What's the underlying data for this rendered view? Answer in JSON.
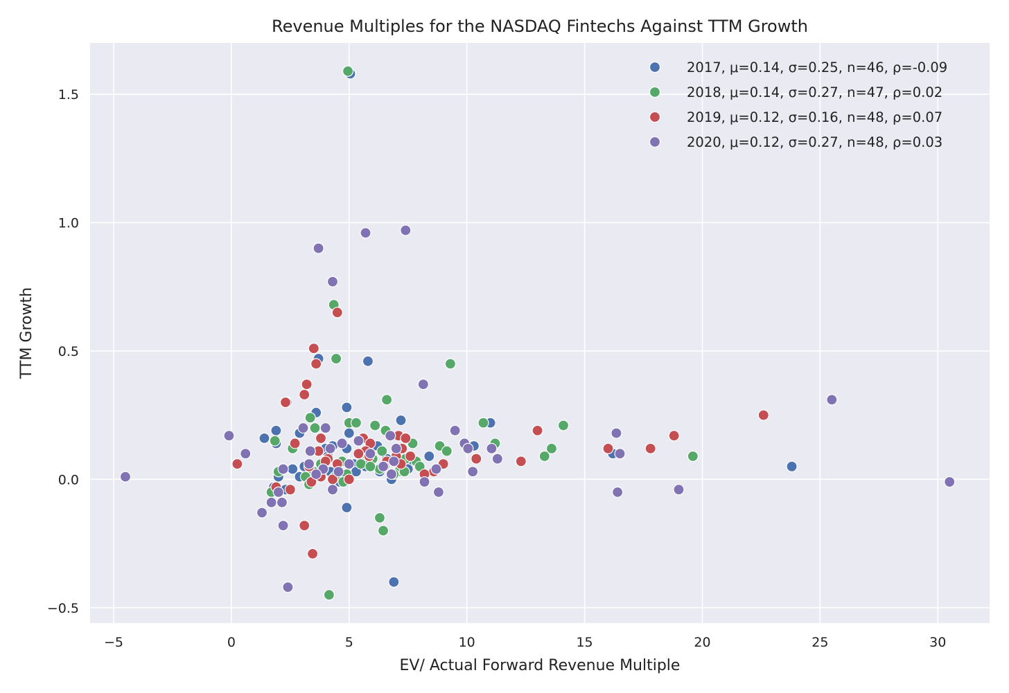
{
  "chart_data": {
    "type": "scatter",
    "title": "Revenue Multiples for the NASDAQ Fintechs Against TTM Growth",
    "xlabel": "EV/ Actual Forward Revenue Multiple",
    "ylabel": "TTM Growth",
    "xlim": [
      -6,
      32.2
    ],
    "ylim": [
      -0.56,
      1.7
    ],
    "xticks": [
      -5,
      0,
      5,
      10,
      15,
      20,
      25,
      30
    ],
    "xtick_labels": [
      "−5",
      "0",
      "5",
      "10",
      "15",
      "20",
      "25",
      "30"
    ],
    "yticks": [
      -0.5,
      0.0,
      0.5,
      1.0,
      1.5
    ],
    "ytick_labels": [
      "−0.5",
      "0.0",
      "0.5",
      "1.0",
      "1.5"
    ],
    "grid": true,
    "legend_position": "top-right",
    "series": [
      {
        "name": "2017",
        "label": "2017, μ=0.14, σ=0.25, n=46, ρ=-0.09",
        "color": "#4c72b0",
        "points": [
          [
            5.05,
            1.58
          ],
          [
            3.7,
            0.47
          ],
          [
            5.8,
            0.46
          ],
          [
            2.35,
            0.3
          ],
          [
            4.9,
            0.28
          ],
          [
            3.6,
            0.26
          ],
          [
            7.2,
            0.23
          ],
          [
            11.0,
            0.22
          ],
          [
            1.9,
            0.19
          ],
          [
            5.0,
            0.18
          ],
          [
            2.9,
            0.18
          ],
          [
            1.4,
            0.16
          ],
          [
            1.9,
            0.14
          ],
          [
            4.3,
            0.13
          ],
          [
            10.3,
            0.13
          ],
          [
            6.2,
            0.13
          ],
          [
            4.0,
            0.12
          ],
          [
            4.9,
            0.12
          ],
          [
            3.7,
            0.11
          ],
          [
            5.4,
            0.1
          ],
          [
            16.2,
            0.1
          ],
          [
            4.1,
            0.09
          ],
          [
            8.4,
            0.09
          ],
          [
            6.6,
            0.08
          ],
          [
            7.7,
            0.07
          ],
          [
            5.2,
            0.06
          ],
          [
            3.1,
            0.05
          ],
          [
            5.7,
            0.05
          ],
          [
            23.8,
            0.05
          ],
          [
            2.6,
            0.04
          ],
          [
            7.5,
            0.04
          ],
          [
            4.2,
            0.03
          ],
          [
            6.3,
            0.03
          ],
          [
            5.3,
            0.03
          ],
          [
            2.9,
            0.01
          ],
          [
            2.0,
            0.01
          ],
          [
            4.8,
            0.0
          ],
          [
            6.8,
            0.0
          ],
          [
            3.3,
            -0.01
          ],
          [
            4.6,
            -0.01
          ],
          [
            1.8,
            -0.03
          ],
          [
            2.3,
            -0.04
          ],
          [
            3.8,
            0.02
          ],
          [
            4.9,
            -0.11
          ],
          [
            6.9,
            -0.4
          ],
          [
            5.6,
            0.07
          ]
        ]
      },
      {
        "name": "2018",
        "label": "2018, μ=0.14, σ=0.27, n=47, ρ=0.02",
        "color": "#55a868",
        "points": [
          [
            4.95,
            1.59
          ],
          [
            4.35,
            0.68
          ],
          [
            4.45,
            0.47
          ],
          [
            9.3,
            0.45
          ],
          [
            6.6,
            0.31
          ],
          [
            3.35,
            0.24
          ],
          [
            5.0,
            0.22
          ],
          [
            5.3,
            0.22
          ],
          [
            10.7,
            0.22
          ],
          [
            6.1,
            0.21
          ],
          [
            14.1,
            0.21
          ],
          [
            3.55,
            0.2
          ],
          [
            6.55,
            0.19
          ],
          [
            7.7,
            0.14
          ],
          [
            11.2,
            0.14
          ],
          [
            1.85,
            0.15
          ],
          [
            8.85,
            0.13
          ],
          [
            2.6,
            0.12
          ],
          [
            13.6,
            0.12
          ],
          [
            9.15,
            0.11
          ],
          [
            6.4,
            0.11
          ],
          [
            5.7,
            0.1
          ],
          [
            13.3,
            0.09
          ],
          [
            19.6,
            0.09
          ],
          [
            7.4,
            0.08
          ],
          [
            6.0,
            0.08
          ],
          [
            7.85,
            0.07
          ],
          [
            4.7,
            0.07
          ],
          [
            3.8,
            0.06
          ],
          [
            5.5,
            0.06
          ],
          [
            8.0,
            0.05
          ],
          [
            6.3,
            0.04
          ],
          [
            2.0,
            0.03
          ],
          [
            7.1,
            0.03
          ],
          [
            3.5,
            0.03
          ],
          [
            4.9,
            0.02
          ],
          [
            6.9,
            0.02
          ],
          [
            7.35,
            0.03
          ],
          [
            3.15,
            0.01
          ],
          [
            4.4,
            0.01
          ],
          [
            3.3,
            -0.02
          ],
          [
            4.75,
            -0.01
          ],
          [
            1.7,
            -0.05
          ],
          [
            6.3,
            -0.15
          ],
          [
            6.45,
            -0.2
          ],
          [
            4.15,
            -0.45
          ],
          [
            5.9,
            0.05
          ]
        ]
      },
      {
        "name": "2019",
        "label": "2019, μ=0.12, σ=0.16, n=48, ρ=0.07",
        "color": "#c44e52",
        "points": [
          [
            4.5,
            0.65
          ],
          [
            3.5,
            0.51
          ],
          [
            3.6,
            0.45
          ],
          [
            3.2,
            0.37
          ],
          [
            3.1,
            0.33
          ],
          [
            2.3,
            0.3
          ],
          [
            22.6,
            0.25
          ],
          [
            13.0,
            0.19
          ],
          [
            18.8,
            0.17
          ],
          [
            7.1,
            0.17
          ],
          [
            5.6,
            0.16
          ],
          [
            7.4,
            0.16
          ],
          [
            3.8,
            0.16
          ],
          [
            2.7,
            0.14
          ],
          [
            5.9,
            0.14
          ],
          [
            7.25,
            0.12
          ],
          [
            16.0,
            0.12
          ],
          [
            17.8,
            0.12
          ],
          [
            5.7,
            0.11
          ],
          [
            3.7,
            0.11
          ],
          [
            5.4,
            0.1
          ],
          [
            7.0,
            0.09
          ],
          [
            7.6,
            0.09
          ],
          [
            5.85,
            0.09
          ],
          [
            10.4,
            0.08
          ],
          [
            4.1,
            0.08
          ],
          [
            4.0,
            0.07
          ],
          [
            6.6,
            0.07
          ],
          [
            12.3,
            0.07
          ],
          [
            0.25,
            0.06
          ],
          [
            9.0,
            0.06
          ],
          [
            4.5,
            0.06
          ],
          [
            7.2,
            0.06
          ],
          [
            3.3,
            0.05
          ],
          [
            6.5,
            0.05
          ],
          [
            3.9,
            0.04
          ],
          [
            8.6,
            0.03
          ],
          [
            8.2,
            0.02
          ],
          [
            3.6,
            0.02
          ],
          [
            3.8,
            0.01
          ],
          [
            5.0,
            0.0
          ],
          [
            4.3,
            0.0
          ],
          [
            3.4,
            -0.01
          ],
          [
            2.5,
            -0.04
          ],
          [
            1.9,
            -0.03
          ],
          [
            3.1,
            -0.18
          ],
          [
            3.45,
            -0.29
          ],
          [
            6.8,
            0.02
          ]
        ]
      },
      {
        "name": "2020",
        "label": "2020, μ=0.12, σ=0.27, n=48, ρ=0.03",
        "color": "#8172b3",
        "points": [
          [
            7.4,
            0.97
          ],
          [
            5.7,
            0.96
          ],
          [
            3.7,
            0.9
          ],
          [
            4.3,
            0.77
          ],
          [
            8.15,
            0.37
          ],
          [
            25.5,
            0.31
          ],
          [
            3.05,
            0.2
          ],
          [
            4.0,
            0.2
          ],
          [
            9.5,
            0.19
          ],
          [
            16.35,
            0.18
          ],
          [
            -0.1,
            0.17
          ],
          [
            6.75,
            0.17
          ],
          [
            9.9,
            0.14
          ],
          [
            4.7,
            0.14
          ],
          [
            11.05,
            0.12
          ],
          [
            10.05,
            0.12
          ],
          [
            4.2,
            0.12
          ],
          [
            3.35,
            0.11
          ],
          [
            16.5,
            0.1
          ],
          [
            0.6,
            0.1
          ],
          [
            11.3,
            0.08
          ],
          [
            5.0,
            0.06
          ],
          [
            6.9,
            0.07
          ],
          [
            3.3,
            0.06
          ],
          [
            6.45,
            0.05
          ],
          [
            3.9,
            0.04
          ],
          [
            8.7,
            0.04
          ],
          [
            2.2,
            0.04
          ],
          [
            4.55,
            0.03
          ],
          [
            10.25,
            0.03
          ],
          [
            3.6,
            0.02
          ],
          [
            6.8,
            0.02
          ],
          [
            -4.5,
            0.01
          ],
          [
            30.5,
            -0.01
          ],
          [
            8.2,
            -0.01
          ],
          [
            4.3,
            -0.04
          ],
          [
            19.0,
            -0.04
          ],
          [
            8.8,
            -0.05
          ],
          [
            16.4,
            -0.05
          ],
          [
            2.0,
            -0.05
          ],
          [
            1.7,
            -0.09
          ],
          [
            2.15,
            -0.09
          ],
          [
            1.3,
            -0.13
          ],
          [
            2.2,
            -0.18
          ],
          [
            2.4,
            -0.42
          ],
          [
            5.9,
            0.1
          ],
          [
            7.0,
            0.12
          ],
          [
            5.4,
            0.15
          ]
        ]
      }
    ]
  }
}
